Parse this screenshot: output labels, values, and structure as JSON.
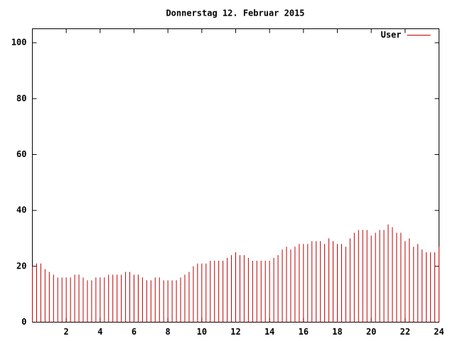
{
  "chart_data": {
    "type": "impulse",
    "title": "Donnerstag 12. Februar 2015",
    "x": [
      0,
      0.25,
      0.5,
      0.75,
      1,
      1.25,
      1.5,
      1.75,
      2,
      2.25,
      2.5,
      2.75,
      3,
      3.25,
      3.5,
      3.75,
      4,
      4.25,
      4.5,
      4.75,
      5,
      5.25,
      5.5,
      5.75,
      6,
      6.25,
      6.5,
      6.75,
      7,
      7.25,
      7.5,
      7.75,
      8,
      8.25,
      8.5,
      8.75,
      9,
      9.25,
      9.5,
      9.75,
      10,
      10.25,
      10.5,
      10.75,
      11,
      11.25,
      11.5,
      11.75,
      12,
      12.25,
      12.5,
      12.75,
      13,
      13.25,
      13.5,
      13.75,
      14,
      14.25,
      14.5,
      14.75,
      15,
      15.25,
      15.5,
      15.75,
      16,
      16.25,
      16.5,
      16.75,
      17,
      17.25,
      17.5,
      17.75,
      18,
      18.25,
      18.5,
      18.75,
      19,
      19.25,
      19.5,
      19.75,
      20,
      20.25,
      20.5,
      20.75,
      21,
      21.25,
      21.5,
      21.75,
      22,
      22.25,
      22.5,
      22.75,
      23,
      23.25,
      23.5,
      23.75,
      24
    ],
    "series": [
      {
        "name": "User",
        "color": "#c00000",
        "values": [
          20,
          21,
          21,
          19,
          18,
          17,
          16,
          16,
          16,
          16,
          17,
          17,
          16,
          15,
          15,
          16,
          16,
          16,
          17,
          17,
          17,
          17,
          18,
          18,
          17,
          17,
          16,
          15,
          15,
          16,
          16,
          15,
          15,
          15,
          15,
          16,
          17,
          18,
          20,
          21,
          21,
          21,
          22,
          22,
          22,
          22,
          23,
          24,
          25,
          24,
          24,
          23,
          22,
          22,
          22,
          22,
          22,
          23,
          24,
          26,
          27,
          26,
          27,
          28,
          28,
          28,
          29,
          29,
          29,
          28,
          30,
          29,
          28,
          28,
          27,
          30,
          32,
          33,
          33,
          33,
          31,
          32,
          33,
          33,
          35,
          34,
          32,
          32,
          29,
          30,
          27,
          28,
          26,
          25,
          25,
          25,
          27
        ]
      }
    ],
    "xlim": [
      0,
      24
    ],
    "xticks": [
      2,
      4,
      6,
      8,
      10,
      12,
      14,
      16,
      18,
      20,
      22,
      24
    ],
    "ylim": [
      0,
      105
    ],
    "yticks": [
      0,
      20,
      40,
      60,
      80,
      100
    ],
    "legend": "top-right"
  }
}
